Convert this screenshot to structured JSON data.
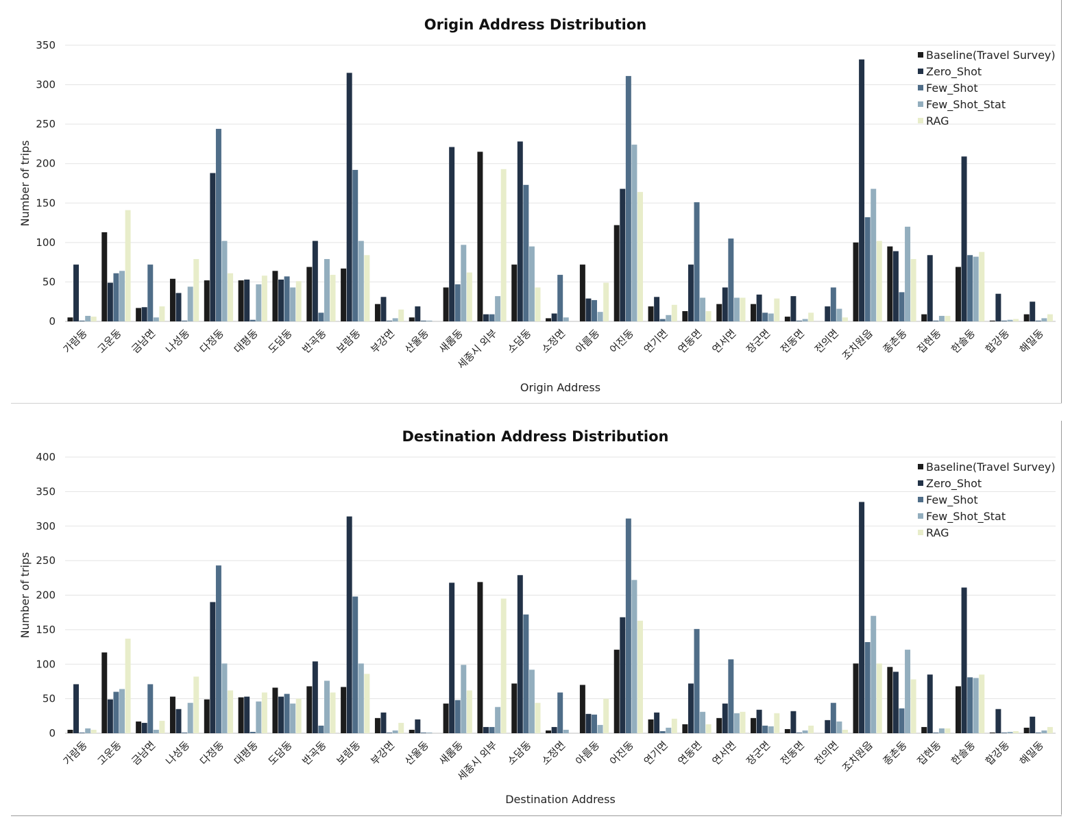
{
  "colors": {
    "series": [
      "#1c1c1c",
      "#223247",
      "#4f6d88",
      "#93aebe",
      "#e8edca"
    ]
  },
  "chart_data": [
    {
      "type": "bar",
      "title": "Origin Address Distribution",
      "xlabel": "Origin Address",
      "ylabel": "Number of trips",
      "ylim": [
        0,
        350
      ],
      "yticks": [
        0,
        50,
        100,
        150,
        200,
        250,
        300,
        350
      ],
      "grid": true,
      "legend_position": "top-right",
      "categories": [
        "가람동",
        "고운동",
        "금남면",
        "나성동",
        "다정동",
        "대평동",
        "도담동",
        "반곡동",
        "보람동",
        "부강면",
        "산울동",
        "새롬동",
        "세종시 외부",
        "소담동",
        "소정면",
        "아름동",
        "어진동",
        "연기면",
        "연동면",
        "연서면",
        "장군면",
        "전동면",
        "전의면",
        "조치원읍",
        "종촌동",
        "집현동",
        "한솔동",
        "합강동",
        "해밀동"
      ],
      "series": [
        {
          "name": "Baseline(Travel Survey)",
          "values": [
            5,
            113,
            17,
            54,
            52,
            52,
            64,
            69,
            67,
            22,
            5,
            43,
            215,
            72,
            4,
            72,
            122,
            19,
            13,
            22,
            22,
            6,
            0,
            100,
            95,
            9,
            69,
            1,
            9
          ]
        },
        {
          "name": "Zero_Shot",
          "values": [
            72,
            49,
            18,
            36,
            188,
            53,
            53,
            102,
            315,
            31,
            19,
            221,
            9,
            228,
            10,
            29,
            168,
            31,
            72,
            43,
            34,
            32,
            19,
            332,
            89,
            84,
            209,
            35,
            25
          ]
        },
        {
          "name": "Few_Shot",
          "values": [
            1,
            61,
            72,
            1,
            244,
            2,
            57,
            11,
            192,
            1,
            1,
            47,
            9,
            173,
            59,
            27,
            311,
            3,
            151,
            105,
            11,
            1,
            43,
            132,
            37,
            1,
            84,
            1,
            1
          ]
        },
        {
          "name": "Few_Shot_Stat",
          "values": [
            7,
            64,
            5,
            44,
            102,
            47,
            43,
            79,
            102,
            4,
            1,
            97,
            32,
            95,
            5,
            12,
            224,
            8,
            30,
            30,
            10,
            3,
            16,
            168,
            120,
            7,
            82,
            2,
            4
          ]
        },
        {
          "name": "RAG",
          "values": [
            6,
            141,
            19,
            79,
            61,
            58,
            51,
            59,
            84,
            15,
            0,
            62,
            193,
            43,
            0,
            49,
            164,
            21,
            13,
            30,
            29,
            11,
            5,
            102,
            79,
            7,
            88,
            3,
            9
          ]
        }
      ]
    },
    {
      "type": "bar",
      "title": "Destination Address Distribution",
      "xlabel": "Destination Address",
      "ylabel": "Number of trips",
      "ylim": [
        0,
        400
      ],
      "yticks": [
        0,
        50,
        100,
        150,
        200,
        250,
        300,
        350,
        400
      ],
      "grid": true,
      "legend_position": "top-right",
      "categories": [
        "가람동",
        "고운동",
        "금남면",
        "나성동",
        "다정동",
        "대평동",
        "도담동",
        "반곡동",
        "보람동",
        "부강면",
        "산울동",
        "새롬동",
        "세종시 외부",
        "소담동",
        "소정면",
        "아름동",
        "어진동",
        "연기면",
        "연동면",
        "연서면",
        "장군면",
        "전동면",
        "전의면",
        "조치원읍",
        "종촌동",
        "집현동",
        "한솔동",
        "합강동",
        "해밀동"
      ],
      "series": [
        {
          "name": "Baseline(Travel Survey)",
          "values": [
            5,
            117,
            17,
            53,
            49,
            52,
            66,
            68,
            67,
            22,
            5,
            43,
            219,
            72,
            4,
            70,
            121,
            20,
            13,
            22,
            22,
            6,
            0,
            101,
            96,
            9,
            68,
            1,
            8
          ]
        },
        {
          "name": "Zero_Shot",
          "values": [
            71,
            49,
            15,
            35,
            190,
            53,
            53,
            104,
            314,
            30,
            20,
            218,
            9,
            229,
            9,
            28,
            168,
            30,
            72,
            43,
            34,
            32,
            19,
            335,
            89,
            85,
            211,
            35,
            24
          ]
        },
        {
          "name": "Few_Shot",
          "values": [
            1,
            60,
            71,
            1,
            243,
            2,
            57,
            11,
            198,
            1,
            1,
            48,
            9,
            172,
            59,
            27,
            311,
            3,
            151,
            107,
            11,
            1,
            44,
            132,
            36,
            1,
            81,
            1,
            1
          ]
        },
        {
          "name": "Few_Shot_Stat",
          "values": [
            7,
            64,
            5,
            44,
            101,
            46,
            43,
            76,
            101,
            4,
            1,
            99,
            38,
            92,
            5,
            12,
            222,
            8,
            31,
            29,
            10,
            4,
            17,
            170,
            121,
            7,
            80,
            2,
            4
          ]
        },
        {
          "name": "RAG",
          "values": [
            5,
            137,
            18,
            82,
            62,
            59,
            50,
            59,
            86,
            15,
            0,
            62,
            195,
            44,
            0,
            50,
            163,
            21,
            13,
            31,
            29,
            11,
            5,
            101,
            78,
            7,
            85,
            3,
            9
          ]
        }
      ]
    }
  ]
}
